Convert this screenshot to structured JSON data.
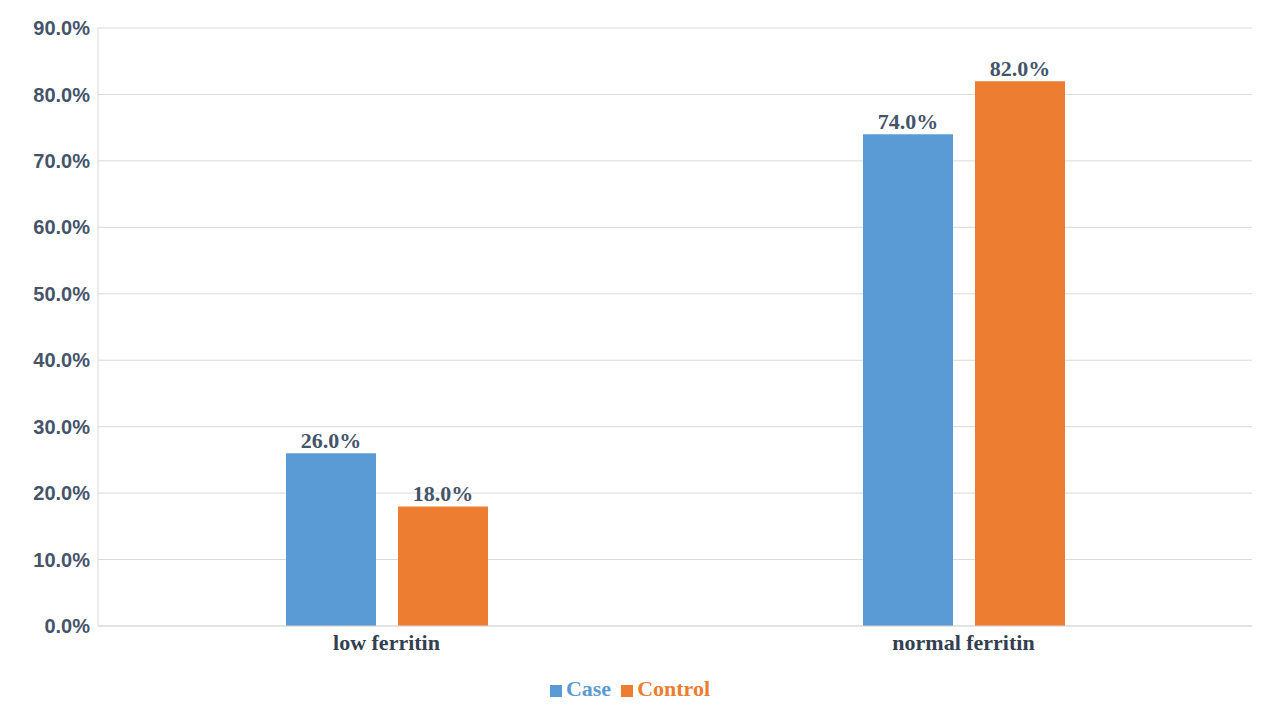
{
  "chart_data": {
    "type": "bar",
    "categories": [
      "low ferritin",
      "normal ferritin"
    ],
    "series": [
      {
        "name": "Case",
        "color": "#5b9bd5",
        "values": [
          26,
          74
        ],
        "value_labels": [
          "26.0%",
          "74.0%"
        ]
      },
      {
        "name": "Control",
        "color": "#ed7d31",
        "values": [
          18,
          82
        ],
        "value_labels": [
          "18.0%",
          "82.0%"
        ]
      }
    ],
    "ylim": [
      0,
      90
    ],
    "yticks": [
      {
        "value": 0,
        "label": "0.0%"
      },
      {
        "value": 10,
        "label": "10.0%"
      },
      {
        "value": 20,
        "label": "20.0%"
      },
      {
        "value": 30,
        "label": "30.0%"
      },
      {
        "value": 40,
        "label": "40.0%"
      },
      {
        "value": 50,
        "label": "50.0%"
      },
      {
        "value": 60,
        "label": "60.0%"
      },
      {
        "value": 70,
        "label": "70.0%"
      },
      {
        "value": 80,
        "label": "80.0%"
      },
      {
        "value": 90,
        "label": "90.0%"
      }
    ],
    "grid": true,
    "data_labels": true,
    "legend": "bottom"
  }
}
